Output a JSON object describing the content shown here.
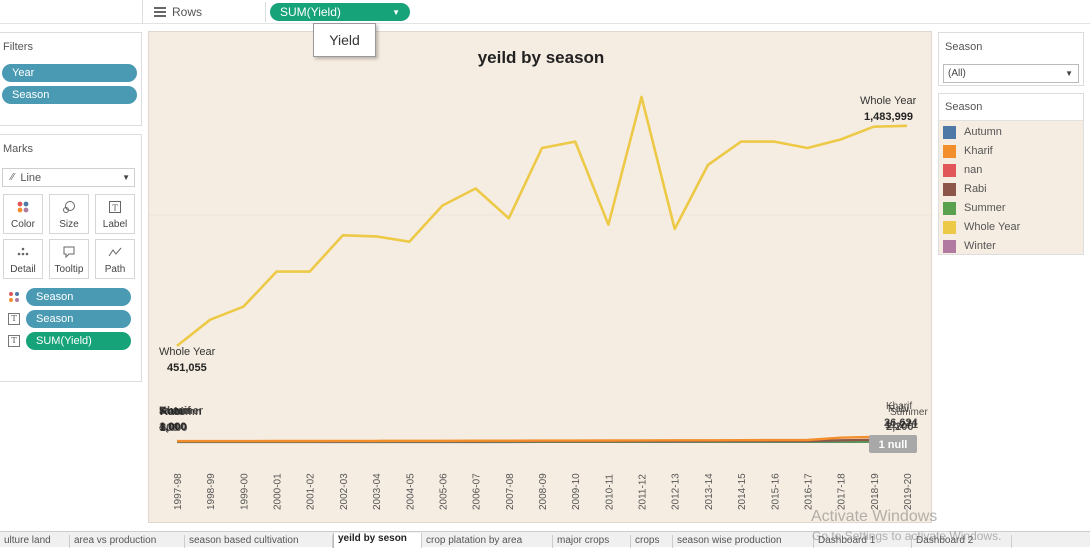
{
  "toolbar": {
    "rows_label": "Rows",
    "rows_pill": "SUM(Yield)",
    "tooltip_text": "Yield"
  },
  "filters": {
    "title": "Filters",
    "items": [
      "Year",
      "Season"
    ]
  },
  "marks": {
    "title": "Marks",
    "mark_type": "Line",
    "buttons": [
      "Color",
      "Size",
      "Label",
      "Detail",
      "Tooltip",
      "Path"
    ],
    "fields": [
      {
        "label": "Season",
        "kind": "color"
      },
      {
        "label": "Season",
        "kind": "text"
      },
      {
        "label": "SUM(Yield)",
        "kind": "text"
      }
    ]
  },
  "season_filter": {
    "title": "Season",
    "value": "(All)"
  },
  "legend": {
    "title": "Season",
    "items": [
      {
        "label": "Autumn",
        "color": "#4e79a7"
      },
      {
        "label": "Kharif",
        "color": "#f28e2b"
      },
      {
        "label": "nan",
        "color": "#e15759"
      },
      {
        "label": "Rabi",
        "color": "#8c564b"
      },
      {
        "label": "Summer",
        "color": "#59a14f"
      },
      {
        "label": "Whole Year",
        "color": "#edc948"
      },
      {
        "label": "Winter",
        "color": "#b07aa1"
      }
    ]
  },
  "chart_data": {
    "type": "line",
    "title": "yeild by season",
    "xlabel": "",
    "ylabel": "",
    "categories": [
      "1997-98",
      "1998-99",
      "1999-00",
      "2000-01",
      "2001-02",
      "2002-03",
      "2003-04",
      "2004-05",
      "2005-06",
      "2006-07",
      "2007-08",
      "2008-09",
      "2009-10",
      "2010-11",
      "2011-12",
      "2012-13",
      "2013-14",
      "2014-15",
      "2015-16",
      "2016-17",
      "2017-18",
      "2018-19",
      "2019-20"
    ],
    "ylim": [
      0,
      1840000
    ],
    "grid": false,
    "series": [
      {
        "name": "Whole Year",
        "color": "#edc948",
        "values": [
          451055,
          574000,
          635000,
          800000,
          800000,
          970000,
          965000,
          940000,
          1110000,
          1190000,
          1050000,
          1380000,
          1410000,
          1020000,
          1620000,
          1000000,
          1300000,
          1410000,
          1410000,
          1380000,
          1420000,
          1480000,
          1483999
        ]
      },
      {
        "name": "Kharif",
        "color": "#f28e2b",
        "values": [
          4000,
          4200,
          4300,
          4500,
          4600,
          5000,
          5200,
          5400,
          5800,
          6000,
          6200,
          6500,
          6800,
          7000,
          7400,
          7800,
          8200,
          8600,
          9000,
          9600,
          20000,
          24000,
          26624
        ]
      },
      {
        "name": "Rabi",
        "color": "#8c564b",
        "values": [
          2000,
          2100,
          2200,
          2300,
          2400,
          2500,
          2600,
          2700,
          2800,
          3000,
          3100,
          3200,
          3300,
          3500,
          3700,
          3900,
          4000,
          4200,
          4400,
          4600,
          8000,
          10000,
          11271
        ]
      },
      {
        "name": "Summer",
        "color": "#59a14f",
        "values": [
          1000,
          1000,
          1100,
          1100,
          1200,
          1200,
          1300,
          1300,
          1400,
          1400,
          1500,
          1500,
          1600,
          1600,
          1700,
          1700,
          1800,
          1800,
          1900,
          1900,
          2000,
          2100,
          2200
        ]
      },
      {
        "name": "Autumn",
        "color": "#4e79a7",
        "values": [
          500,
          520,
          540,
          560,
          580,
          600,
          620,
          640,
          660,
          680,
          700,
          720,
          740,
          760,
          780,
          800,
          820,
          840,
          860,
          880,
          900,
          920,
          940
        ]
      }
    ],
    "labels": {
      "start_name": "Whole Year",
      "start_value": "451,055",
      "end_name": "Whole Year",
      "end_value": "1,483,999",
      "null_badge": "1 null",
      "left_stack_names": [
        "Kharif",
        "Rabi",
        "Summer",
        "Autumn"
      ],
      "left_stack_values": [
        "4,000",
        "2,000",
        "1,000",
        "500"
      ],
      "right_stack_names": [
        "Kharif",
        "Rabi",
        "Summer"
      ],
      "right_stack_values": [
        "26,624",
        "11,271",
        "2,200"
      ]
    }
  },
  "tabs": [
    {
      "label": "ulture land",
      "active": false
    },
    {
      "label": "area vs production",
      "active": false
    },
    {
      "label": "season based cultivation",
      "active": false
    },
    {
      "label": "yeild by seson",
      "active": true
    },
    {
      "label": "crop platation by area",
      "active": false
    },
    {
      "label": "major crops",
      "active": false
    },
    {
      "label": "crops",
      "active": false
    },
    {
      "label": "season wise production",
      "active": false
    },
    {
      "label": "Dashboard 1",
      "active": false
    },
    {
      "label": "Dashboard 2",
      "active": false
    }
  ],
  "watermark": {
    "line1": "Activate Windows",
    "line2": "Go to Settings to activate Windows."
  }
}
